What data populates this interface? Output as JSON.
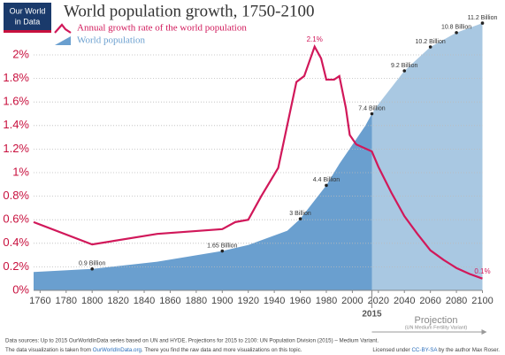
{
  "logo": [
    "Our World",
    "in Data"
  ],
  "chart_data": {
    "type": "line-area",
    "title": "World population growth, 1750-2100",
    "xlim": [
      1755,
      2100
    ],
    "xticks": [
      1760,
      1780,
      1800,
      1820,
      1840,
      1860,
      1880,
      1900,
      1920,
      1940,
      1960,
      1980,
      2000,
      2020,
      2040,
      2060,
      2080,
      2100
    ],
    "ylim": [
      0,
      2.1
    ],
    "yticks": [
      {
        "value": 0,
        "label": "0%"
      },
      {
        "value": 0.2,
        "label": "0.2%"
      },
      {
        "value": 0.4,
        "label": "0.4%"
      },
      {
        "value": 0.6,
        "label": "0.6%"
      },
      {
        "value": 0.8,
        "label": "0.8%"
      },
      {
        "value": 1,
        "label": "1%"
      },
      {
        "value": 1.2,
        "label": "1.2%"
      },
      {
        "value": 1.4,
        "label": "1.4%"
      },
      {
        "value": 1.6,
        "label": "1.6%"
      },
      {
        "value": 1.8,
        "label": "1.8%"
      },
      {
        "value": 2,
        "label": "2%"
      }
    ],
    "y2lim": [
      0,
      11.5
    ],
    "grid": true,
    "projection": {
      "start": 2015,
      "label": "Projection",
      "note": "(UN Medium Fertility Variant)",
      "color": "#a9c8e2"
    },
    "series": [
      {
        "name": "Annual growth rate of the world population",
        "color": "#d1185a",
        "kind": "line",
        "x": [
          1755,
          1800,
          1850,
          1900,
          1910,
          1920,
          1930,
          1943,
          1957,
          1963,
          1971,
          1976,
          1980,
          1986,
          1990,
          1995,
          1998,
          2003,
          2015,
          2020,
          2030,
          2040,
          2050,
          2060,
          2070,
          2080,
          2090,
          2100
        ],
        "values": [
          0.58,
          0.39,
          0.48,
          0.52,
          0.58,
          0.6,
          0.8,
          1.04,
          1.77,
          1.82,
          2.07,
          1.97,
          1.79,
          1.79,
          1.82,
          1.55,
          1.32,
          1.24,
          1.18,
          1.05,
          0.83,
          0.63,
          0.48,
          0.34,
          0.26,
          0.19,
          0.14,
          0.1
        ],
        "value_labels": [
          null,
          null,
          null,
          null,
          null,
          null,
          null,
          null,
          null,
          null,
          "2.1%",
          null,
          null,
          null,
          null,
          null,
          null,
          null,
          null,
          null,
          null,
          null,
          null,
          null,
          null,
          null,
          null,
          "0.1%"
        ]
      },
      {
        "name": "World population",
        "color": "#6a9fcf",
        "kind": "area",
        "axis": "y2",
        "x": [
          1755,
          1800,
          1850,
          1900,
          1920,
          1940,
          1950,
          1960,
          1970,
          1980,
          1990,
          2000,
          2010,
          2015,
          2020,
          2030,
          2040,
          2050,
          2060,
          2070,
          2080,
          2090,
          2100
        ],
        "values": [
          0.77,
          0.9,
          1.2,
          1.65,
          1.9,
          2.3,
          2.5,
          3,
          3.7,
          4.4,
          5.3,
          6.1,
          6.9,
          7.4,
          7.8,
          8.5,
          9.2,
          9.7,
          10.2,
          10.5,
          10.8,
          11,
          11.2
        ],
        "value_labels": [
          null,
          "0.9 Billion",
          null,
          "1.65 Billion",
          null,
          null,
          null,
          "3 Billion",
          null,
          "4.4 Billion",
          null,
          null,
          null,
          "7.4 Billion",
          null,
          null,
          "9.2 Billion",
          null,
          "10.2 Billion",
          null,
          "10.8 Billion",
          null,
          "11.2 Billion"
        ]
      }
    ]
  },
  "footer": {
    "sources": "Data sources:  Up to 2015 OurWorldInData series based on UN and HYDE. Projections for 2015 to 2100: UN Population Division (2015) – Medium Variant.",
    "taken_from": [
      "The data visualization is taken from",
      "OurWorldInData.org",
      ". There you find the raw data and more visualizations on this topic."
    ],
    "license": [
      "Licensed under",
      "CC-BY-SA",
      "by the author Max Roser."
    ]
  }
}
